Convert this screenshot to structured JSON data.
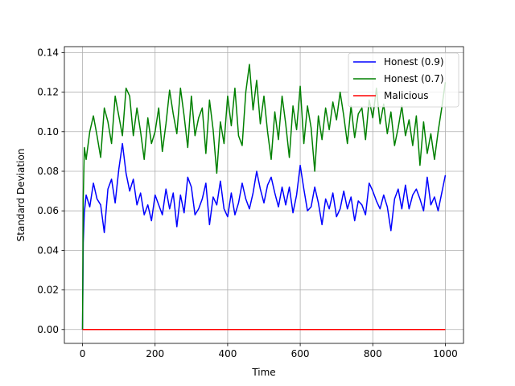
{
  "chart_data": {
    "type": "line",
    "title": "",
    "xlabel": "Time",
    "ylabel": "Standard Deviation",
    "xlim": [
      -50,
      1050
    ],
    "ylim": [
      -0.007,
      0.143
    ],
    "xticks": [
      0,
      200,
      400,
      600,
      800,
      1000
    ],
    "xtick_labels": [
      "0",
      "200",
      "400",
      "600",
      "800",
      "1000"
    ],
    "yticks": [
      0.0,
      0.02,
      0.04,
      0.06,
      0.08,
      0.1,
      0.12,
      0.14
    ],
    "ytick_labels": [
      "0.00",
      "0.02",
      "0.04",
      "0.06",
      "0.08",
      "0.10",
      "0.12",
      "0.14"
    ],
    "grid": true,
    "legend_position": "top-right",
    "series": [
      {
        "name": "Honest (0.9)",
        "color": "#0000ff",
        "x": [
          0,
          2,
          5,
          10,
          20,
          30,
          40,
          50,
          60,
          70,
          80,
          90,
          100,
          110,
          120,
          130,
          140,
          150,
          160,
          170,
          180,
          190,
          200,
          210,
          220,
          230,
          240,
          250,
          260,
          270,
          280,
          290,
          300,
          310,
          320,
          330,
          340,
          350,
          360,
          370,
          380,
          390,
          400,
          410,
          420,
          430,
          440,
          450,
          460,
          470,
          480,
          490,
          500,
          510,
          520,
          530,
          540,
          550,
          560,
          570,
          580,
          590,
          600,
          610,
          620,
          630,
          640,
          650,
          660,
          670,
          680,
          690,
          700,
          710,
          720,
          730,
          740,
          750,
          760,
          770,
          780,
          790,
          800,
          810,
          820,
          830,
          840,
          850,
          860,
          870,
          880,
          890,
          900,
          910,
          920,
          930,
          940,
          950,
          960,
          970,
          980,
          990,
          1000
        ],
        "values": [
          0.0,
          0.044,
          0.059,
          0.068,
          0.062,
          0.074,
          0.066,
          0.063,
          0.049,
          0.071,
          0.076,
          0.064,
          0.081,
          0.094,
          0.079,
          0.07,
          0.076,
          0.063,
          0.069,
          0.058,
          0.063,
          0.055,
          0.068,
          0.063,
          0.058,
          0.071,
          0.061,
          0.069,
          0.052,
          0.068,
          0.059,
          0.077,
          0.072,
          0.058,
          0.061,
          0.066,
          0.074,
          0.053,
          0.067,
          0.063,
          0.075,
          0.061,
          0.057,
          0.069,
          0.058,
          0.064,
          0.074,
          0.066,
          0.061,
          0.069,
          0.08,
          0.071,
          0.064,
          0.073,
          0.077,
          0.069,
          0.062,
          0.072,
          0.063,
          0.072,
          0.059,
          0.068,
          0.083,
          0.071,
          0.06,
          0.062,
          0.072,
          0.064,
          0.053,
          0.066,
          0.061,
          0.069,
          0.057,
          0.061,
          0.07,
          0.061,
          0.067,
          0.055,
          0.065,
          0.063,
          0.058,
          0.074,
          0.07,
          0.065,
          0.061,
          0.068,
          0.062,
          0.05,
          0.066,
          0.071,
          0.061,
          0.073,
          0.061,
          0.068,
          0.071,
          0.066,
          0.06,
          0.077,
          0.063,
          0.067,
          0.06,
          0.069,
          0.078
        ]
      },
      {
        "name": "Honest (0.7)",
        "color": "#008000",
        "x": [
          0,
          2,
          5,
          10,
          20,
          30,
          40,
          50,
          60,
          70,
          80,
          90,
          100,
          110,
          120,
          130,
          140,
          150,
          160,
          170,
          180,
          190,
          200,
          210,
          220,
          230,
          240,
          250,
          260,
          270,
          280,
          290,
          300,
          310,
          320,
          330,
          340,
          350,
          360,
          370,
          380,
          390,
          400,
          410,
          420,
          430,
          440,
          450,
          460,
          470,
          480,
          490,
          500,
          510,
          520,
          530,
          540,
          550,
          560,
          570,
          580,
          590,
          600,
          610,
          620,
          630,
          640,
          650,
          660,
          670,
          680,
          690,
          700,
          710,
          720,
          730,
          740,
          750,
          760,
          770,
          780,
          790,
          800,
          810,
          820,
          830,
          840,
          850,
          860,
          870,
          880,
          890,
          900,
          910,
          920,
          930,
          940,
          950,
          960,
          970,
          980,
          990,
          1000
        ],
        "values": [
          0.0,
          0.066,
          0.092,
          0.086,
          0.1,
          0.108,
          0.098,
          0.087,
          0.112,
          0.105,
          0.094,
          0.118,
          0.108,
          0.098,
          0.122,
          0.118,
          0.098,
          0.112,
          0.1,
          0.086,
          0.107,
          0.094,
          0.1,
          0.112,
          0.09,
          0.104,
          0.121,
          0.109,
          0.099,
          0.122,
          0.108,
          0.092,
          0.118,
          0.098,
          0.107,
          0.112,
          0.089,
          0.116,
          0.101,
          0.079,
          0.105,
          0.094,
          0.118,
          0.103,
          0.122,
          0.098,
          0.093,
          0.12,
          0.134,
          0.111,
          0.126,
          0.104,
          0.118,
          0.1,
          0.086,
          0.11,
          0.096,
          0.118,
          0.104,
          0.087,
          0.113,
          0.101,
          0.123,
          0.094,
          0.113,
          0.102,
          0.08,
          0.108,
          0.096,
          0.112,
          0.101,
          0.115,
          0.106,
          0.12,
          0.108,
          0.094,
          0.113,
          0.097,
          0.109,
          0.112,
          0.096,
          0.116,
          0.107,
          0.122,
          0.104,
          0.114,
          0.099,
          0.11,
          0.093,
          0.102,
          0.113,
          0.098,
          0.106,
          0.093,
          0.108,
          0.083,
          0.105,
          0.089,
          0.099,
          0.086,
          0.1,
          0.112,
          0.125
        ]
      },
      {
        "name": "Malicious",
        "color": "#ff0000",
        "x": [
          0,
          1000
        ],
        "values": [
          0.0,
          0.0
        ]
      }
    ]
  }
}
